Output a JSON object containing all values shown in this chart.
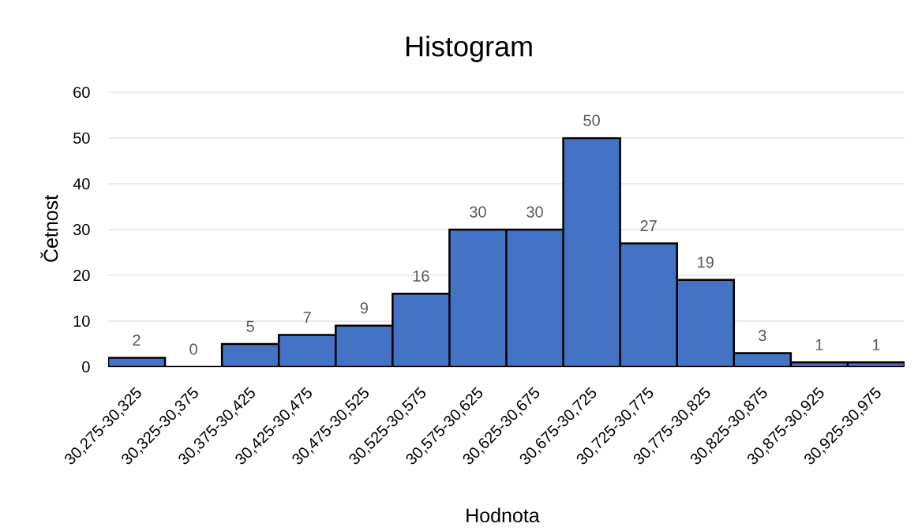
{
  "chart_data": {
    "type": "bar",
    "title": "Histogram",
    "xlabel": "Hodnota",
    "ylabel": "Četnost",
    "categories": [
      "30,275-30,325",
      "30,325-30,375",
      "30,375-30,425",
      "30,425-30,475",
      "30,475-30,525",
      "30,525-30,575",
      "30,575-30,625",
      "30,625-30,675",
      "30,675-30,725",
      "30,725-30,775",
      "30,775-30,825",
      "30,825-30,875",
      "30,875-30,925",
      "30,925-30,975"
    ],
    "values": [
      2,
      0,
      5,
      7,
      9,
      16,
      30,
      30,
      50,
      27,
      19,
      3,
      1,
      1
    ],
    "color": "#4472c4",
    "ylim": [
      0,
      60
    ],
    "yticks": [
      0,
      10,
      20,
      30,
      40,
      50,
      60
    ],
    "grid": "y",
    "data_labels": true
  }
}
